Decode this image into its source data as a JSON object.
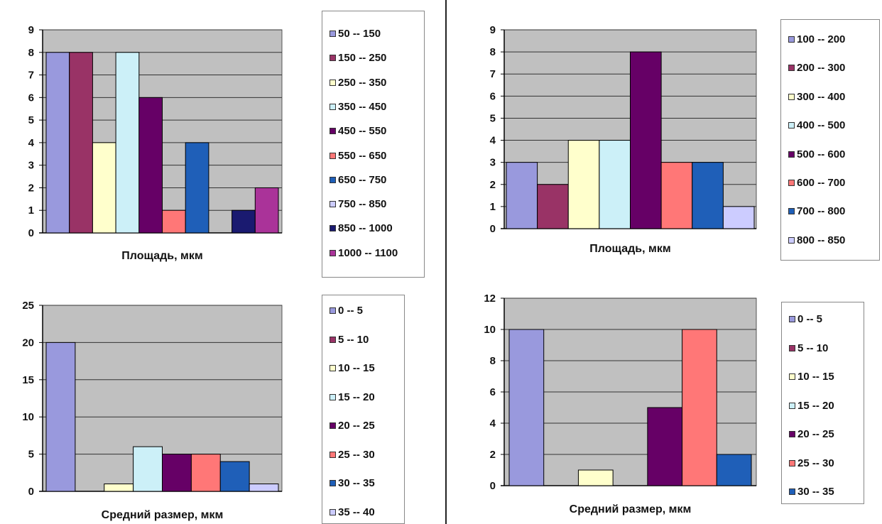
{
  "chart_data": [
    {
      "type": "bar",
      "xlabel": "Площадь, мкм",
      "ylim": [
        0,
        9
      ],
      "yticks": [
        0,
        1,
        2,
        3,
        4,
        5,
        6,
        7,
        8,
        9
      ],
      "grid": true,
      "legend_position": "right",
      "series": [
        {
          "name": "50 -- 150",
          "value": 8,
          "color": "#9999dd"
        },
        {
          "name": "150 -- 250",
          "value": 8,
          "color": "#993366"
        },
        {
          "name": "250 -- 350",
          "value": 4,
          "color": "#ffffcc"
        },
        {
          "name": "350 -- 450",
          "value": 8,
          "color": "#ccf0f8"
        },
        {
          "name": "450 -- 550",
          "value": 6,
          "color": "#660066"
        },
        {
          "name": "550 -- 650",
          "value": 1,
          "color": "#ff7777"
        },
        {
          "name": "650 -- 750",
          "value": 4,
          "color": "#1f5fb8"
        },
        {
          "name": "750 -- 850",
          "value": 0,
          "color": "#ccccff"
        },
        {
          "name": "850 -- 1000",
          "value": 1,
          "color": "#1a1a70"
        },
        {
          "name": "1000 -- 1100",
          "value": 2,
          "color": "#aa3399"
        }
      ]
    },
    {
      "type": "bar",
      "xlabel": "Площадь, мкм",
      "ylim": [
        0,
        9
      ],
      "yticks": [
        0,
        1,
        2,
        3,
        4,
        5,
        6,
        7,
        8,
        9
      ],
      "grid": true,
      "legend_position": "right",
      "series": [
        {
          "name": "100 -- 200",
          "value": 3,
          "color": "#9999dd"
        },
        {
          "name": "200 -- 300",
          "value": 2,
          "color": "#993366"
        },
        {
          "name": "300 -- 400",
          "value": 4,
          "color": "#ffffcc"
        },
        {
          "name": "400 -- 500",
          "value": 4,
          "color": "#ccf0f8"
        },
        {
          "name": "500 -- 600",
          "value": 8,
          "color": "#660066"
        },
        {
          "name": "600 -- 700",
          "value": 3,
          "color": "#ff7777"
        },
        {
          "name": "700 -- 800",
          "value": 3,
          "color": "#1f5fb8"
        },
        {
          "name": "800 -- 850",
          "value": 1,
          "color": "#ccccff"
        }
      ]
    },
    {
      "type": "bar",
      "xlabel": "Средний размер, мкм",
      "ylim": [
        0,
        25
      ],
      "yticks": [
        0,
        5,
        10,
        15,
        20,
        25
      ],
      "grid": true,
      "legend_position": "right",
      "series": [
        {
          "name": "0 -- 5",
          "value": 20,
          "color": "#9999dd"
        },
        {
          "name": "5 -- 10",
          "value": 0,
          "color": "#993366"
        },
        {
          "name": "10 -- 15",
          "value": 1,
          "color": "#ffffcc"
        },
        {
          "name": "15 -- 20",
          "value": 6,
          "color": "#ccf0f8"
        },
        {
          "name": "20 -- 25",
          "value": 5,
          "color": "#660066"
        },
        {
          "name": "25 -- 30",
          "value": 5,
          "color": "#ff7777"
        },
        {
          "name": "30 -- 35",
          "value": 4,
          "color": "#1f5fb8"
        },
        {
          "name": "35 -- 40",
          "value": 1,
          "color": "#ccccff"
        }
      ]
    },
    {
      "type": "bar",
      "xlabel": "Средний размер, мкм",
      "ylim": [
        0,
        12
      ],
      "yticks": [
        0,
        2,
        4,
        6,
        8,
        10,
        12
      ],
      "grid": true,
      "legend_position": "right",
      "series": [
        {
          "name": "0 -- 5",
          "value": 10,
          "color": "#9999dd"
        },
        {
          "name": "5 -- 10",
          "value": 0,
          "color": "#993366"
        },
        {
          "name": "10 -- 15",
          "value": 1,
          "color": "#ffffcc"
        },
        {
          "name": "15 -- 20",
          "value": 0,
          "color": "#ccf0f8"
        },
        {
          "name": "20 -- 25",
          "value": 5,
          "color": "#660066"
        },
        {
          "name": "25 -- 30",
          "value": 10,
          "color": "#ff7777"
        },
        {
          "name": "30 -- 35",
          "value": 2,
          "color": "#1f5fb8"
        }
      ]
    }
  ],
  "style": {
    "plot_background": "#c0c0c0",
    "gridline_color": "#333333",
    "bar_outline": "#000000"
  }
}
